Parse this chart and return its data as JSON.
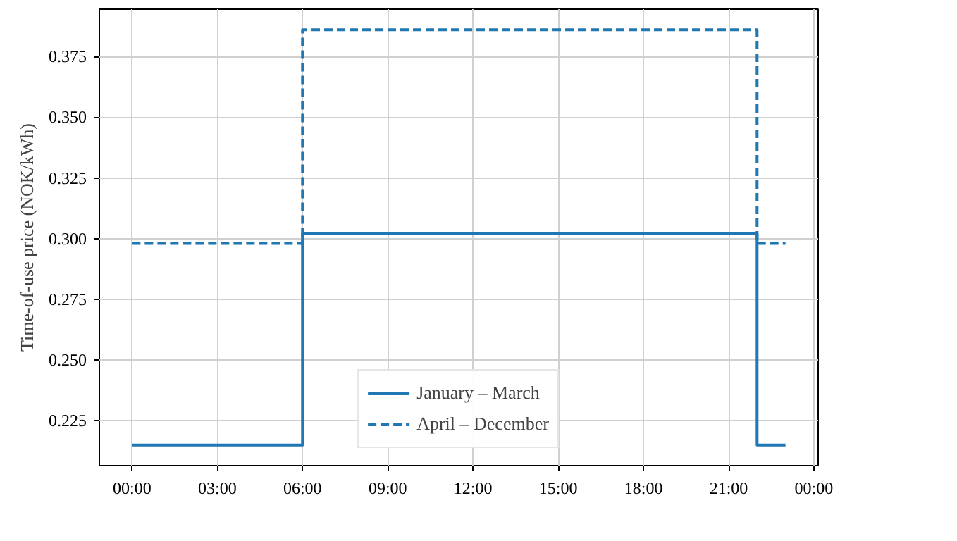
{
  "chart_data": {
    "type": "step",
    "ylabel": "Time-of-use price (NOK/kWh)",
    "x": [
      0,
      6,
      22,
      23
    ],
    "series": [
      {
        "name": "January – March",
        "color": "#1f77b4",
        "line_style": "solid",
        "values": [
          0.215,
          0.302,
          0.215,
          0.215
        ]
      },
      {
        "name": "April – December",
        "color": "#1f77b4",
        "line_style": "dashed",
        "values": [
          0.298,
          0.386,
          0.298,
          0.298
        ]
      }
    ],
    "xlim": [
      -1.15,
      24.15
    ],
    "ylim": [
      0.2065,
      0.3945
    ],
    "xticks": [
      {
        "value": 0,
        "label": "00:00"
      },
      {
        "value": 3,
        "label": "03:00"
      },
      {
        "value": 6,
        "label": "06:00"
      },
      {
        "value": 9,
        "label": "09:00"
      },
      {
        "value": 12,
        "label": "12:00"
      },
      {
        "value": 15,
        "label": "15:00"
      },
      {
        "value": 18,
        "label": "18:00"
      },
      {
        "value": 21,
        "label": "21:00"
      },
      {
        "value": 24,
        "label": "00:00"
      }
    ],
    "yticks": [
      {
        "value": 0.225,
        "label": "0.225"
      },
      {
        "value": 0.25,
        "label": "0.250"
      },
      {
        "value": 0.275,
        "label": "0.275"
      },
      {
        "value": 0.3,
        "label": "0.300"
      },
      {
        "value": 0.325,
        "label": "0.325"
      },
      {
        "value": 0.35,
        "label": "0.350"
      },
      {
        "value": 0.375,
        "label": "0.375"
      }
    ],
    "grid": true,
    "legend": "bottom",
    "marker": "none"
  }
}
